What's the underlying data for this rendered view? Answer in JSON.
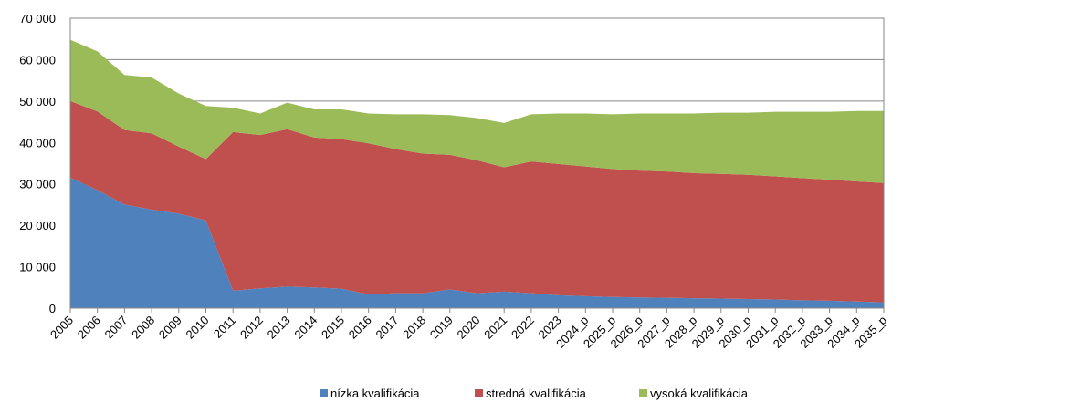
{
  "chart_data": {
    "type": "stacked_area",
    "categories": [
      "2005",
      "2006",
      "2007",
      "2008",
      "2009",
      "2010",
      "2011",
      "2012",
      "2013",
      "2014",
      "2015",
      "2016",
      "2017",
      "2018",
      "2019",
      "2020",
      "2021",
      "2022",
      "2023",
      "2024_p",
      "2025_p",
      "2026_p",
      "2027_p",
      "2028_p",
      "2029_p",
      "2030_p",
      "2031_p",
      "2032_p",
      "2033_p",
      "2034_p",
      "2035_p"
    ],
    "series": [
      {
        "name": "nízka kvalifikácia",
        "color": "#4f81bd",
        "values": [
          31500,
          28500,
          25000,
          23800,
          22800,
          21200,
          4200,
          4800,
          5200,
          5000,
          4700,
          3300,
          3600,
          3600,
          4500,
          3600,
          4000,
          3600,
          3100,
          2900,
          2700,
          2600,
          2500,
          2400,
          2300,
          2200,
          2100,
          1900,
          1800,
          1600,
          1400
        ]
      },
      {
        "name": "stredná kvalifikácia",
        "color": "#c0504d",
        "values": [
          18500,
          19000,
          18000,
          18400,
          16200,
          14800,
          38300,
          37000,
          38000,
          36200,
          36100,
          36500,
          34800,
          33700,
          32500,
          32100,
          30000,
          31800,
          31700,
          31300,
          30900,
          30600,
          30500,
          30200,
          30100,
          30000,
          29700,
          29500,
          29200,
          29000,
          28800
        ]
      },
      {
        "name": "vysoká kvalifikácia",
        "color": "#9bbb59",
        "values": [
          14800,
          14500,
          13300,
          13500,
          12800,
          12800,
          5900,
          5200,
          6400,
          6800,
          7200,
          7200,
          8400,
          9500,
          9600,
          10200,
          10700,
          11400,
          12200,
          12800,
          13200,
          13800,
          14000,
          14400,
          14800,
          15000,
          15600,
          16000,
          16400,
          17000,
          17400
        ]
      }
    ],
    "ylim": [
      0,
      70000
    ],
    "yticks": [
      0,
      {
        "value": 10000,
        "label": "10 000"
      },
      {
        "value": 20000,
        "label": "20 000"
      },
      {
        "value": 30000,
        "label": "30 000"
      },
      {
        "value": 40000,
        "label": "40 000"
      },
      {
        "value": 50000,
        "label": "50 000"
      },
      {
        "value": 60000,
        "label": "60 000"
      },
      {
        "value": 70000,
        "label": "70 000"
      }
    ],
    "grid": true,
    "legend": "bottom"
  }
}
